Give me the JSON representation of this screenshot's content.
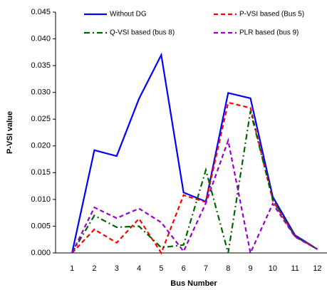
{
  "chart_data": {
    "type": "line",
    "x_label": "Bus Number",
    "y_label": "P-VSI value",
    "categories": [
      "1",
      "2",
      "3",
      "4",
      "5",
      "6",
      "7",
      "8",
      "9",
      "10",
      "11",
      "12"
    ],
    "series": [
      {
        "name": "Without DG",
        "color": "#0000ff",
        "dash": "solid",
        "values": [
          0,
          0.0192,
          0.0181,
          0.0288,
          0.037,
          0.0113,
          0.0096,
          0.0299,
          0.0289,
          0.0105,
          0.0033,
          0.0007
        ]
      },
      {
        "name": "P-VSI based (Bus 5)",
        "color": "#ff0000",
        "dash": "dashed",
        "values": [
          0,
          0.0044,
          0.0019,
          0.0064,
          0,
          0.0108,
          0.0095,
          0.0281,
          0.0271,
          0.0098,
          0.0031,
          0.0007
        ]
      },
      {
        "name": "Q-VSI based (bus 8)",
        "color": "#006400",
        "dash": "dashdot",
        "values": [
          0,
          0.007,
          0.0048,
          0.005,
          0.001,
          0.0015,
          0.0155,
          0,
          0.0265,
          0.01,
          0.0031,
          0.0007
        ]
      },
      {
        "name": "PLR based (bus 9)",
        "color": "#9900cc",
        "dash": "dashed",
        "values": [
          0,
          0.0085,
          0.0065,
          0.0083,
          0.0057,
          0.0003,
          0.0093,
          0.021,
          0,
          0.0092,
          0.003,
          0.0007
        ]
      }
    ],
    "ylim": [
      0,
      0.045
    ],
    "yticks": [
      {
        "value": 0,
        "label": "0.000"
      },
      {
        "value": 0.005,
        "label": "0.005"
      },
      {
        "value": 0.01,
        "label": "0.010"
      },
      {
        "value": 0.015,
        "label": "0.015"
      },
      {
        "value": 0.02,
        "label": "0.020"
      },
      {
        "value": 0.025,
        "label": "0.025"
      },
      {
        "value": 0.03,
        "label": "0.030"
      },
      {
        "value": 0.035,
        "label": "0.035"
      },
      {
        "value": 0.04,
        "label": "0.040"
      },
      {
        "value": 0.045,
        "label": "0.045"
      }
    ],
    "grid": false
  }
}
